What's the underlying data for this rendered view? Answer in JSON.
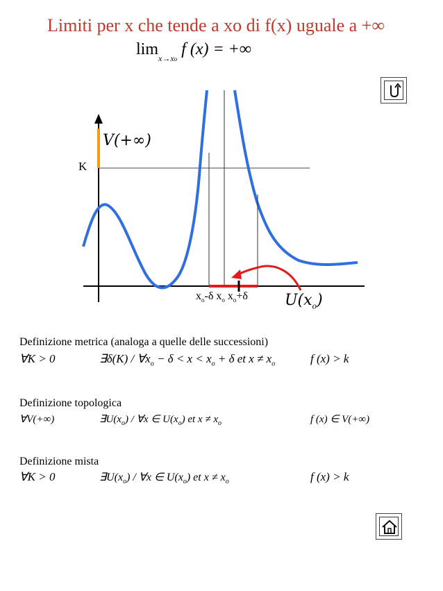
{
  "title": "Limiti per x che tende a xo di f(x) uguale a +∞",
  "formula": {
    "lim": "lim",
    "subscript": "x→x",
    "subscript_o": "o",
    "body": "f (x) = +∞"
  },
  "graph": {
    "k_label": "K",
    "v_label": "V(+∞)",
    "tick_labels": {
      "left_x": "x",
      "left_o": "o",
      "left_rest": "-δ",
      "mid_x": "x",
      "mid_o": "o",
      "right_x": "x",
      "right_o": "o",
      "right_rest": "+δ"
    },
    "u_label": "U(x",
    "u_sub": "o",
    "u_close": ")",
    "colors": {
      "curve": "#2f6fe0",
      "highlight": "#f39c12",
      "neighborhood": "#e21b1b",
      "axis": "#000000"
    }
  },
  "sections": {
    "metric": {
      "heading": "Definizione metrica (analoga a quelle delle successioni)",
      "quantifier": "∀K > 0",
      "condition_a": "∃δ(K) / ∀x",
      "condition_b": "o",
      "condition_c": " − δ < x < x",
      "condition_d": "o",
      "condition_e": " + δ et x ≠ x",
      "condition_f": "o",
      "consequence": "f (x) > k"
    },
    "topological": {
      "heading": "Definizione topologica",
      "quantifier": "∀V(+∞)",
      "condition_a": "∃U(x",
      "condition_b": "o",
      "condition_c": ") / ∀x ∈ U(x",
      "condition_d": "o",
      "condition_e": ") et x ≠ x",
      "condition_f": "o",
      "consequence": "f (x) ∈ V(+∞)"
    },
    "mixed": {
      "heading": "Definizione mista",
      "quantifier": "∀K > 0",
      "condition_a": "∃U(x",
      "condition_b": "o",
      "condition_c": ") / ∀x ∈ U(x",
      "condition_d": "o",
      "condition_e": ") et x ≠ x",
      "condition_f": "o",
      "consequence": "f (x) > k"
    }
  },
  "nav": {
    "back_icon": "u-turn-arrow-icon",
    "home_icon": "home-icon"
  }
}
